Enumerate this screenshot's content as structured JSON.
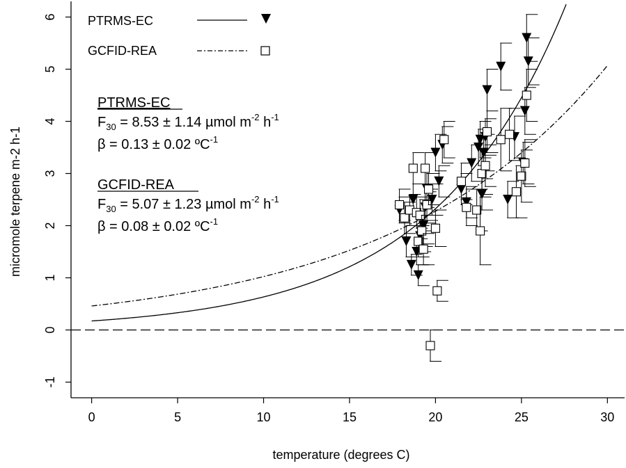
{
  "chart_data": {
    "type": "scatter",
    "xlabel": "temperature (degrees C)",
    "ylabel": "micromole terpene m-2 h-1",
    "xlim": [
      -1.2,
      31
    ],
    "ylim": [
      -1.3,
      6.3
    ],
    "x_ticks": [
      0,
      5,
      10,
      15,
      20,
      25,
      30
    ],
    "y_ticks": [
      -1,
      0,
      1,
      2,
      3,
      4,
      5,
      6
    ],
    "grid": false,
    "legend_position": "top-left",
    "series": [
      {
        "name": "PTRMS-EC",
        "marker": "filled-triangle-down",
        "points": [
          {
            "x": 17.9,
            "y": 2.3,
            "err": 0.25
          },
          {
            "x": 18.3,
            "y": 1.7,
            "err": 0.3
          },
          {
            "x": 18.6,
            "y": 1.25,
            "err": 0.2
          },
          {
            "x": 18.7,
            "y": 2.5,
            "err": 0.3
          },
          {
            "x": 18.9,
            "y": 1.5,
            "err": 0.25
          },
          {
            "x": 19.0,
            "y": 1.05,
            "err": 0.2
          },
          {
            "x": 19.1,
            "y": 1.8,
            "err": 0.3
          },
          {
            "x": 19.3,
            "y": 2.0,
            "err": 0.35
          },
          {
            "x": 19.4,
            "y": 2.35,
            "err": 0.3
          },
          {
            "x": 19.5,
            "y": 2.7,
            "err": 0.3
          },
          {
            "x": 19.8,
            "y": 2.5,
            "err": 0.3
          },
          {
            "x": 20.0,
            "y": 3.4,
            "err": 0.35
          },
          {
            "x": 20.2,
            "y": 2.85,
            "err": 0.3
          },
          {
            "x": 20.4,
            "y": 3.55,
            "err": 0.35
          },
          {
            "x": 21.5,
            "y": 2.7,
            "err": 0.3
          },
          {
            "x": 21.8,
            "y": 2.45,
            "err": 0.3
          },
          {
            "x": 22.1,
            "y": 3.2,
            "err": 0.35
          },
          {
            "x": 22.5,
            "y": 3.5,
            "err": 0.35
          },
          {
            "x": 22.6,
            "y": 3.65,
            "err": 0.35
          },
          {
            "x": 22.7,
            "y": 2.6,
            "err": 0.3
          },
          {
            "x": 22.8,
            "y": 3.4,
            "err": 0.35
          },
          {
            "x": 22.9,
            "y": 3.7,
            "err": 0.35
          },
          {
            "x": 23.0,
            "y": 4.6,
            "err": 0.4
          },
          {
            "x": 23.8,
            "y": 5.05,
            "err": 0.45
          },
          {
            "x": 24.2,
            "y": 2.5,
            "err": 0.35
          },
          {
            "x": 24.6,
            "y": 3.7,
            "err": 0.4
          },
          {
            "x": 25.1,
            "y": 3.2,
            "err": 0.4
          },
          {
            "x": 25.2,
            "y": 4.2,
            "err": 0.45
          },
          {
            "x": 25.3,
            "y": 5.6,
            "err": 0.45
          },
          {
            "x": 25.4,
            "y": 5.15,
            "err": 0.45
          }
        ]
      },
      {
        "name": "GCFID-REA",
        "marker": "open-square",
        "points": [
          {
            "x": 17.9,
            "y": 2.4,
            "err": 0.3
          },
          {
            "x": 18.2,
            "y": 2.15,
            "err": 0.3
          },
          {
            "x": 18.5,
            "y": 2.3,
            "err": 0.3
          },
          {
            "x": 18.7,
            "y": 3.1,
            "err": 0.3
          },
          {
            "x": 18.9,
            "y": 2.25,
            "err": 0.3
          },
          {
            "x": 19.0,
            "y": 1.7,
            "err": 0.3
          },
          {
            "x": 19.1,
            "y": 2.2,
            "err": 0.3
          },
          {
            "x": 19.2,
            "y": 1.9,
            "err": 0.3
          },
          {
            "x": 19.3,
            "y": 1.55,
            "err": 0.3
          },
          {
            "x": 19.4,
            "y": 3.1,
            "err": 0.3
          },
          {
            "x": 19.5,
            "y": 2.4,
            "err": 0.3
          },
          {
            "x": 19.6,
            "y": 2.7,
            "err": 0.3
          },
          {
            "x": 19.7,
            "y": -0.3,
            "err": 0.3
          },
          {
            "x": 20.0,
            "y": 1.95,
            "err": 0.35
          },
          {
            "x": 20.1,
            "y": 0.75,
            "err": 0.2
          },
          {
            "x": 20.5,
            "y": 3.65,
            "err": 0.35
          },
          {
            "x": 21.5,
            "y": 2.85,
            "err": 0.35
          },
          {
            "x": 21.8,
            "y": 2.35,
            "err": 0.35
          },
          {
            "x": 22.4,
            "y": 2.3,
            "err": 0.4
          },
          {
            "x": 22.6,
            "y": 1.9,
            "err": 0.65
          },
          {
            "x": 22.7,
            "y": 3.0,
            "err": 0.4
          },
          {
            "x": 22.9,
            "y": 3.15,
            "err": 0.4
          },
          {
            "x": 23.0,
            "y": 3.8,
            "err": 0.4
          },
          {
            "x": 23.8,
            "y": 3.65,
            "err": 0.6
          },
          {
            "x": 24.3,
            "y": 3.75,
            "err": 0.5
          },
          {
            "x": 24.7,
            "y": 2.65,
            "err": 0.5
          },
          {
            "x": 25.0,
            "y": 2.95,
            "err": 0.5
          },
          {
            "x": 25.2,
            "y": 3.2,
            "err": 0.45
          },
          {
            "x": 25.3,
            "y": 4.5,
            "err": 0.5
          }
        ]
      }
    ],
    "fit_curves": [
      {
        "series": "PTRMS-EC",
        "style": "solid",
        "F30": 8.53,
        "beta": 0.13
      },
      {
        "series": "GCFID-REA",
        "style": "dash-dot",
        "F30": 5.07,
        "beta": 0.08
      }
    ],
    "reference_line": {
      "y": 0,
      "style": "dashed"
    }
  },
  "annotations": {
    "ptrms": {
      "title": "PTRMS-EC",
      "f30_lead": "F",
      "f30_sub": "30",
      "f30_body": " = 8.53 ± 1.14 µmol m",
      "f30_sup1": "-2",
      "f30_mid": " h",
      "f30_sup2": "-1",
      "beta_body": "β = 0.13 ± 0.02 ºC",
      "beta_sup": "-1"
    },
    "gcfid": {
      "title": "GCFID-REA",
      "f30_lead": "F",
      "f30_sub": "30",
      "f30_body": " = 5.07 ± 1.23 µmol m",
      "f30_sup1": "-2",
      "f30_mid": " h",
      "f30_sup2": "-1",
      "beta_body": "β = 0.08 ± 0.02 ºC",
      "beta_sup": "-1"
    }
  },
  "colors": {
    "ink": "#000000",
    "background": "#ffffff"
  }
}
